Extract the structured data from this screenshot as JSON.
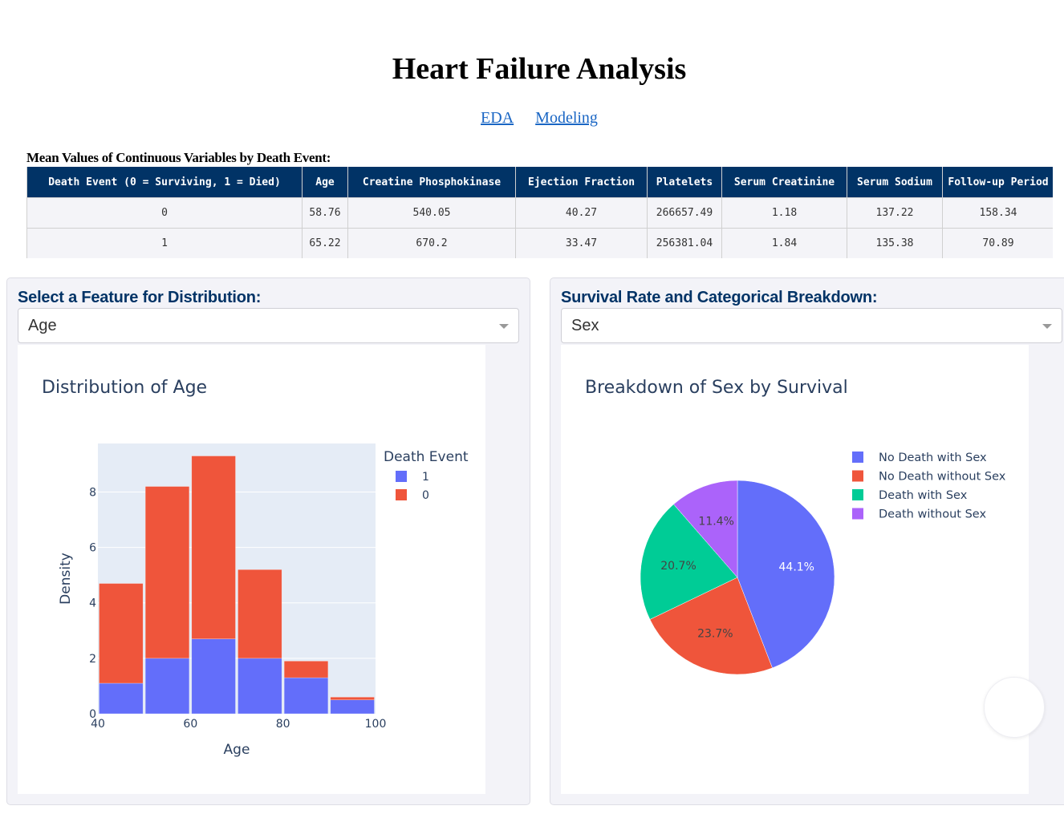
{
  "header": {
    "title": "Heart Failure Analysis",
    "nav_links": [
      {
        "label": "EDA"
      },
      {
        "label": "Modeling"
      }
    ]
  },
  "summary_table": {
    "caption": "Mean Values of Continuous Variables by Death Event:",
    "columns": [
      "Death Event (0 = Surviving, 1 = Died)",
      "Age",
      "Creatine Phosphokinase",
      "Ejection Fraction",
      "Platelets",
      "Serum Creatinine",
      "Serum Sodium",
      "Follow-up Period"
    ],
    "rows": [
      [
        "0",
        "58.76",
        "540.05",
        "40.27",
        "266657.49",
        "1.18",
        "137.22",
        "158.34"
      ],
      [
        "1",
        "65.22",
        "670.2",
        "33.47",
        "256381.04",
        "1.84",
        "135.38",
        "70.89"
      ]
    ]
  },
  "left_panel": {
    "label": "Select a Feature for Distribution:",
    "dropdown_value": "Age"
  },
  "right_panel": {
    "label": "Survival Rate and Categorical Breakdown:",
    "dropdown_value": "Sex"
  },
  "colors": {
    "blue": "#636efa",
    "red": "#ef553b",
    "green": "#00cc96",
    "purple": "#ab63fa",
    "header_navy": "#013366",
    "link": "#1a66c4"
  },
  "chart_data": [
    {
      "type": "bar",
      "title": "Distribution of Age",
      "xlabel": "Age",
      "ylabel": "Density",
      "barmode": "stack",
      "bins": [
        [
          40,
          50
        ],
        [
          50,
          60
        ],
        [
          60,
          70
        ],
        [
          70,
          80
        ],
        [
          80,
          90
        ],
        [
          90,
          100
        ]
      ],
      "xlim": [
        40,
        100
      ],
      "ylim": [
        0,
        9.75
      ],
      "xticks": [
        "40",
        "60",
        "80",
        "100"
      ],
      "yticks": [
        "0",
        "2",
        "4",
        "6",
        "8"
      ],
      "grid": true,
      "legend_title": "Death Event",
      "legend_position": "top-right",
      "series": [
        {
          "name": "1",
          "color": "#636efa",
          "values": [
            1.1,
            2.0,
            2.7,
            2.0,
            1.3,
            0.5
          ]
        },
        {
          "name": "0",
          "color": "#ef553b",
          "values": [
            3.6,
            6.2,
            6.6,
            3.2,
            0.6,
            0.1
          ]
        }
      ]
    },
    {
      "type": "pie",
      "title": "Breakdown of Sex by Survival",
      "legend_position": "top-right",
      "slices": [
        {
          "label": "No Death with Sex",
          "value": 44.1,
          "text": "44.1%",
          "color": "#636efa"
        },
        {
          "label": "No Death without Sex",
          "value": 23.7,
          "text": "23.7%",
          "color": "#ef553b"
        },
        {
          "label": "Death with Sex",
          "value": 20.7,
          "text": "20.7%",
          "color": "#00cc96"
        },
        {
          "label": "Death without Sex",
          "value": 11.4,
          "text": "11.4%",
          "color": "#ab63fa"
        }
      ]
    }
  ]
}
